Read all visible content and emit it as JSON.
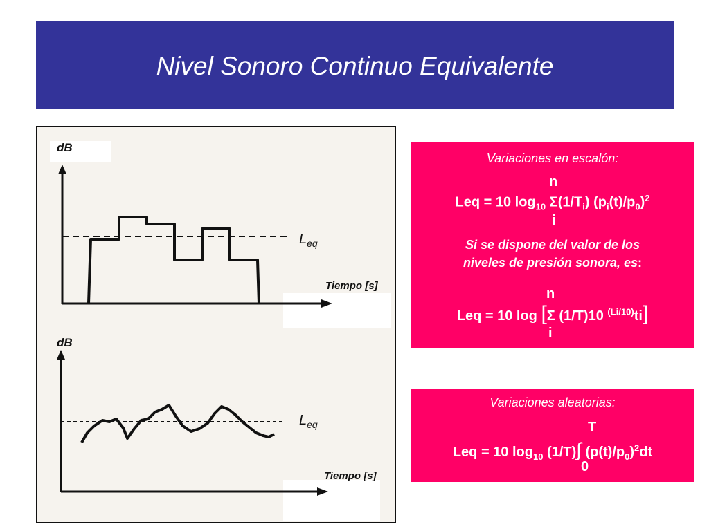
{
  "title": "Nivel Sonoro Continuo Equivalente",
  "figure": {
    "top_chart": {
      "y_label": "dB",
      "x_label": "Tiempo [s]",
      "leq_base": "L",
      "leq_sub": "eq"
    },
    "bottom_chart": {
      "y_label": "dB",
      "x_label": "Tiempo [s]",
      "leq_base": "L",
      "leq_sub": "eq"
    }
  },
  "box_step": {
    "heading": "Variaciones en escalón:",
    "f1": {
      "upper": "n",
      "lower": "i",
      "lhs": "Leq  = 10 log",
      "sub10": "10",
      "sigma": "Σ",
      "t1": "(1/T",
      "ti": "i",
      "t2": ")  (p",
      "pi": "i",
      "t3": "(t)/p",
      "p0": "0",
      "t4": ")",
      "exp": "2"
    },
    "note_line1": "Si se dispone del valor de los",
    "note_line2": "niveles de presión sonora, es",
    "note_colon": ":",
    "f2": {
      "upper": "n",
      "lower": "i",
      "lhs": "Leq = 10 log ",
      "lb": "[",
      "sigma": "Σ",
      "mid": " (1/T)10 ",
      "exp": "(Li/10)",
      "tail": "ti",
      "rb": "]"
    }
  },
  "box_random": {
    "heading": "Variaciones aleatorias:",
    "f3": {
      "upper": "T",
      "lower": "0",
      "lhs": "Leq  = 10 log",
      "sub10": "10",
      "t1": " (1/T)",
      "integral": "∫",
      "t2": " (p(t)/p",
      "p0": "0",
      "t3": ")",
      "exp": "2",
      "t4": "dt"
    }
  },
  "colors": {
    "banner": "#333399",
    "box": "#ff0066"
  }
}
